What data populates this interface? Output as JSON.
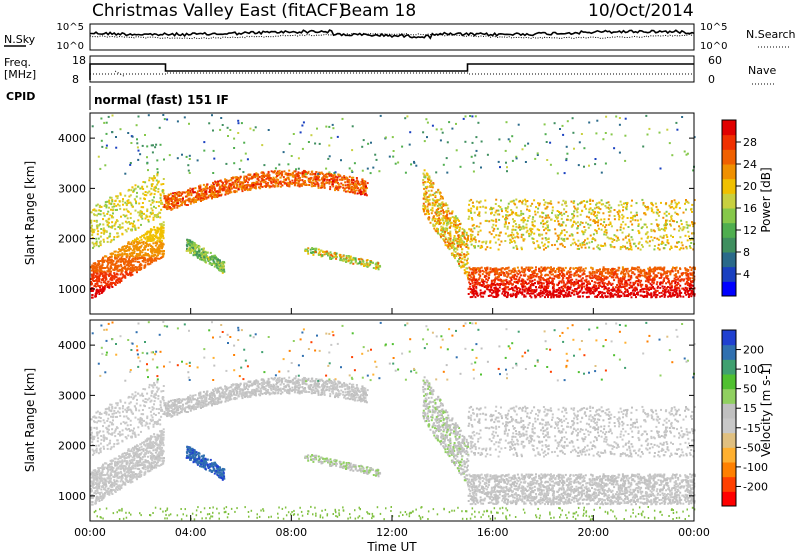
{
  "header": {
    "title": "Christmas Valley East (fitACF)",
    "beam": "Beam 18",
    "date": "10/Oct/2014"
  },
  "top_panels": {
    "nsky_label": "N.Sky",
    "nsky_ticks": [
      "10^5",
      "10^0"
    ],
    "nsearch_label": "N.Search",
    "nsearch_ticks": [
      "10^5",
      "10^0"
    ],
    "freq_label": "Freq.",
    "freq_unit": "[MHz]",
    "freq_ticks": [
      "18",
      "8"
    ],
    "nave_label": "Nave",
    "nave_ticks": [
      "60",
      "0"
    ],
    "cpid_label": "CPID",
    "cpid_text": "normal (fast) 151 IF"
  },
  "colors": {
    "power_scale": [
      "#0000ff",
      "#1a40c0",
      "#2a6a8a",
      "#3f8f5f",
      "#4fae4f",
      "#86c84a",
      "#c8d040",
      "#f0c000",
      "#f09000",
      "#f06000",
      "#f03000",
      "#e00000"
    ],
    "velocity_scale": [
      "#ff0000",
      "#ff4000",
      "#ff8000",
      "#ffb030",
      "#e0c080",
      "#c8c8c8",
      "#c0c0c0",
      "#90d060",
      "#50c030",
      "#40a070",
      "#3070b0",
      "#2040d0"
    ]
  },
  "chart_data": [
    {
      "type": "heatmap",
      "name": "power_panel",
      "ylabel": "Slant Range [km]",
      "yticks": [
        "1000",
        "2000",
        "3000",
        "4000"
      ],
      "ylim": [
        500,
        4500
      ],
      "colorbar_label": "Power [dB]",
      "colorbar_ticks": [
        "4",
        "8",
        "12",
        "16",
        "20",
        "24",
        "28"
      ],
      "clim": [
        0,
        30
      ]
    },
    {
      "type": "heatmap",
      "name": "velocity_panel",
      "ylabel": "Slant Range [km]",
      "yticks": [
        "1000",
        "2000",
        "3000",
        "4000"
      ],
      "ylim": [
        500,
        4500
      ],
      "colorbar_label": "Velocity [m s-1]",
      "colorbar_ticks": [
        "200",
        "100",
        "50",
        "15",
        "-15",
        "-50",
        "-100",
        "-200"
      ],
      "clim": [
        -250,
        250
      ]
    }
  ],
  "xaxis": {
    "label": "Time UT",
    "ticks": [
      "00:00",
      "04:00",
      "08:00",
      "12:00",
      "16:00",
      "20:00",
      "00:00"
    ],
    "xlim_hours": [
      0,
      24
    ]
  }
}
